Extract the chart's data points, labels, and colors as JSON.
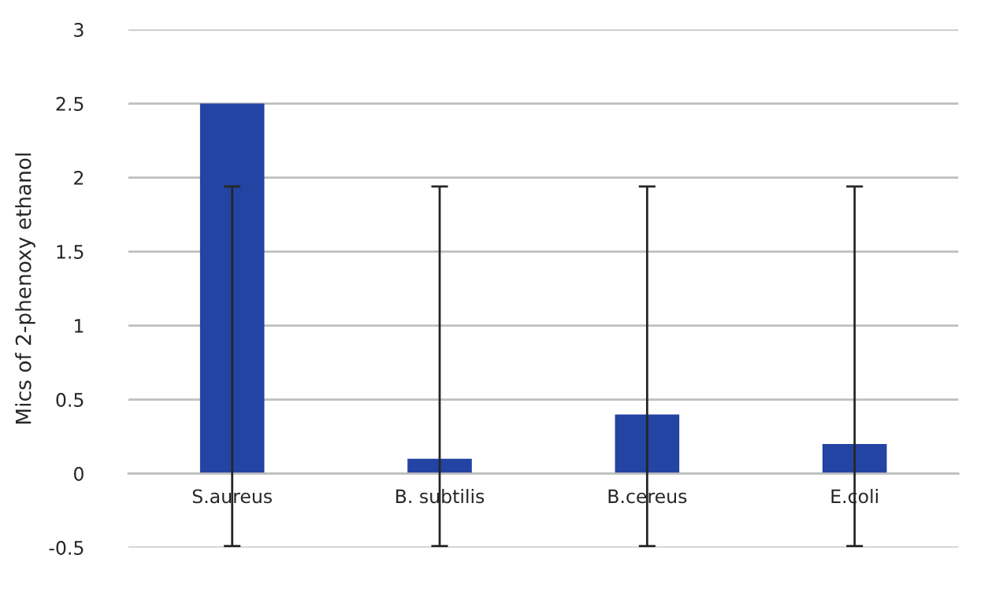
{
  "chart_data": {
    "type": "bar",
    "ylabel": "Mics of 2-phenoxy ethanol",
    "categories": [
      "S.aureus",
      "B. subtilis",
      "B.cereus",
      "E.coli"
    ],
    "values": [
      2.5,
      0.1,
      0.4,
      0.2
    ],
    "errors": [
      [
        -0.49,
        1.94
      ],
      [
        -0.49,
        1.94
      ],
      [
        -0.49,
        1.94
      ],
      [
        -0.49,
        1.94
      ]
    ],
    "color": "#2344a3",
    "ylim": [
      -0.5,
      3
    ],
    "yticks": [
      -0.5,
      0,
      0.5,
      1,
      1.5,
      2,
      2.5,
      3
    ],
    "grid": "y"
  }
}
